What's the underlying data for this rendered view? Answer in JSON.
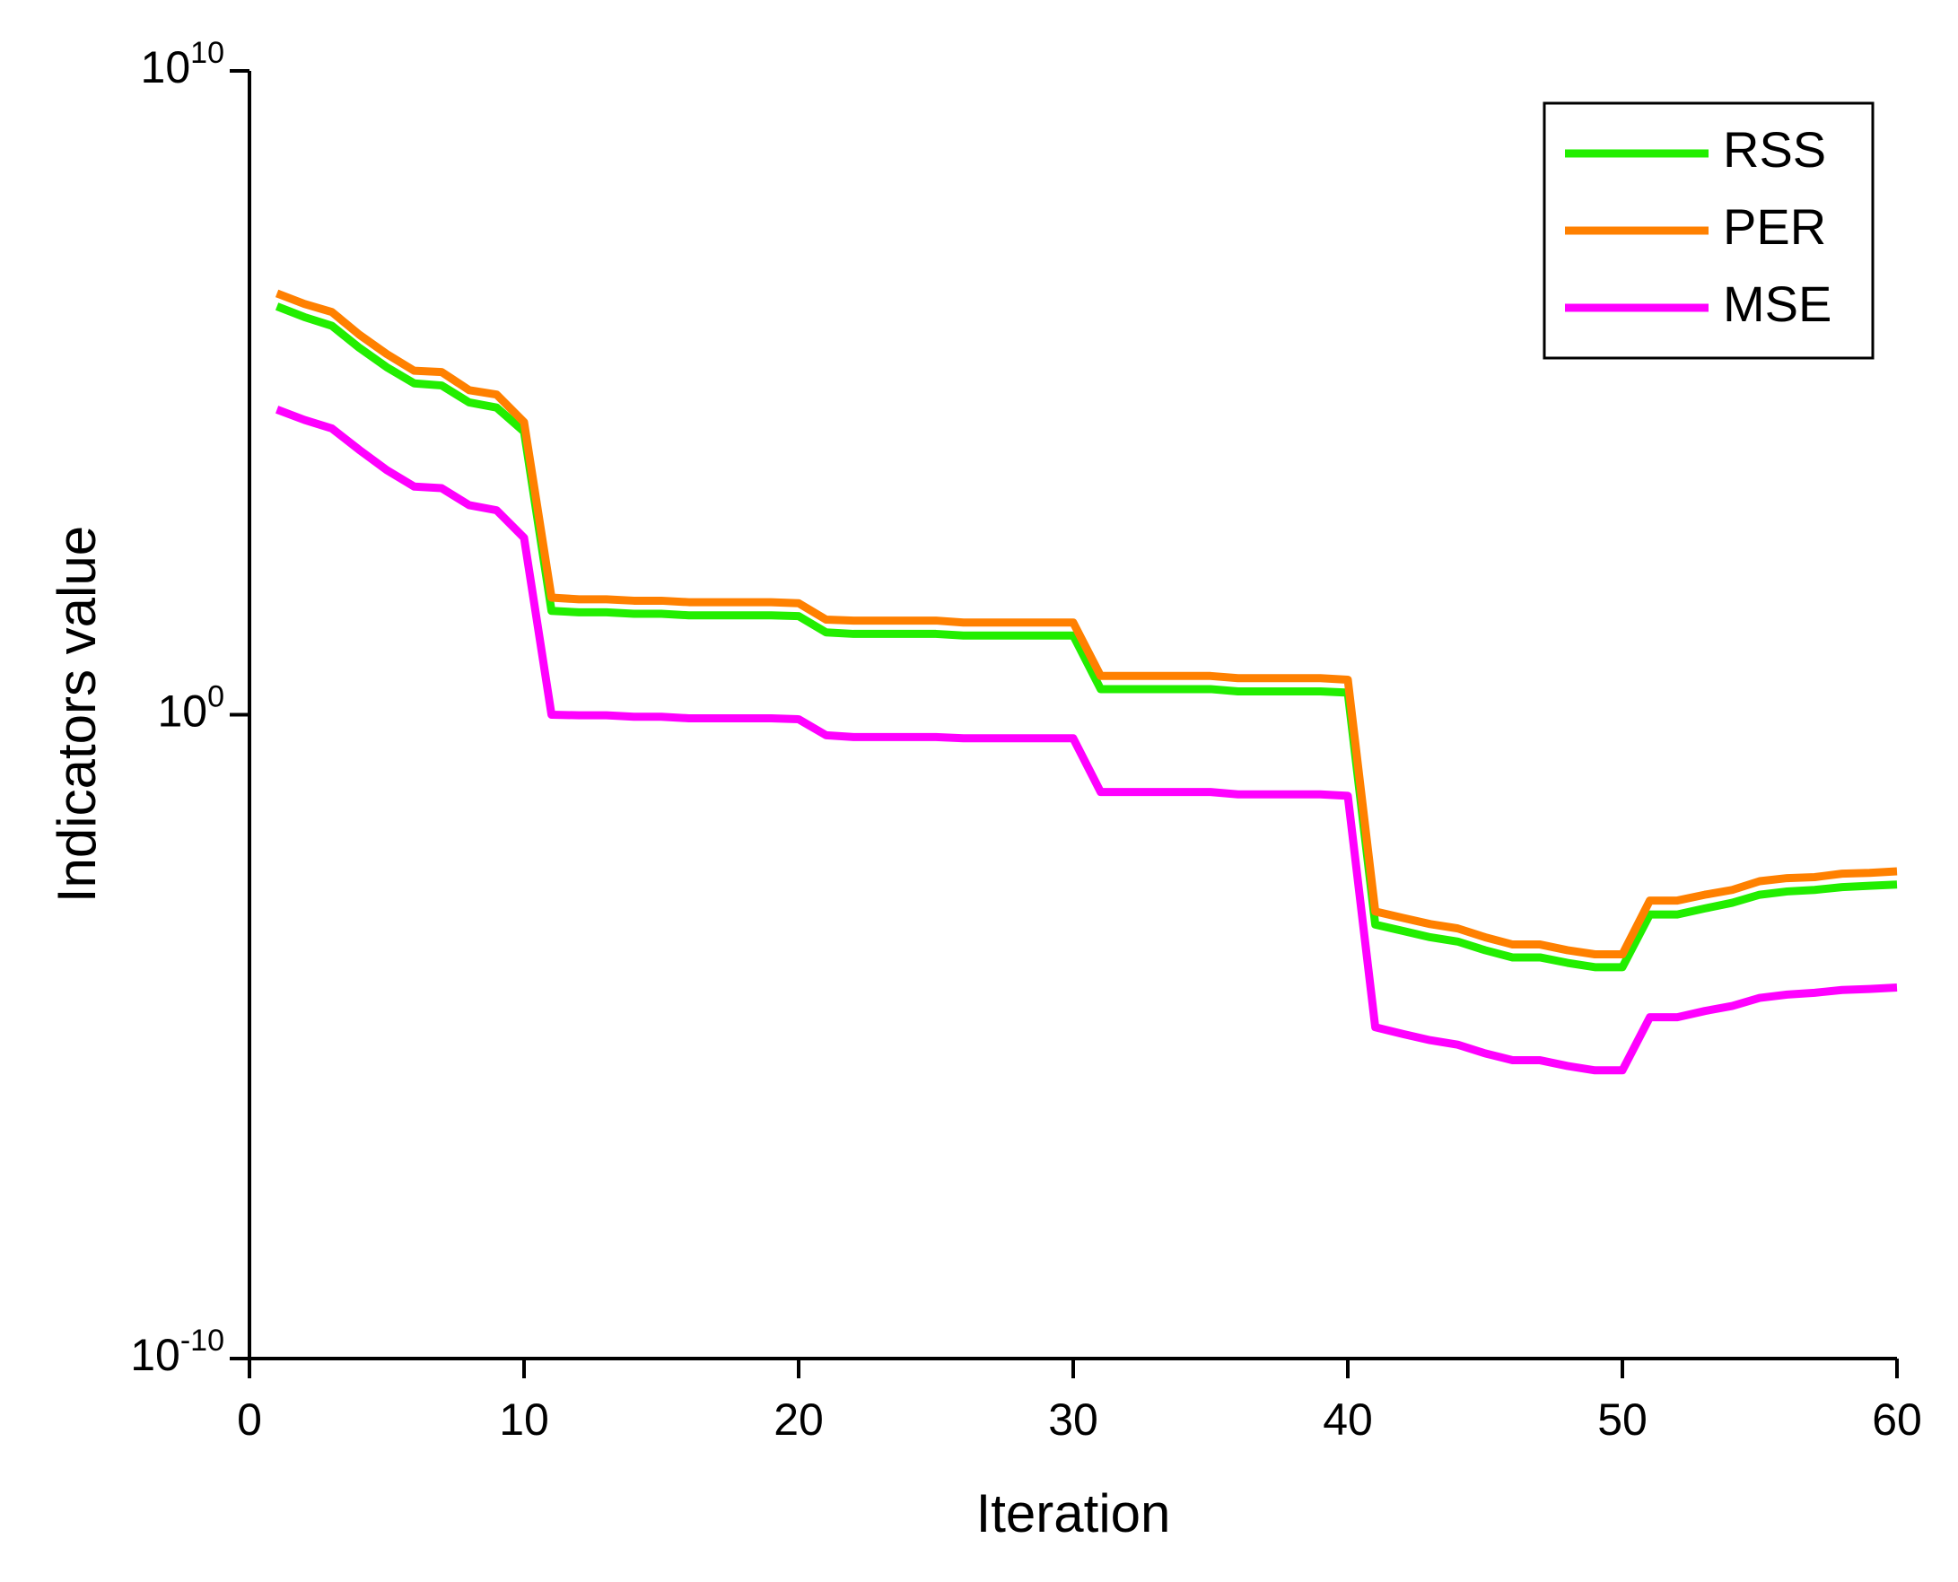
{
  "chart_data": {
    "type": "line",
    "x_label": "Iteration",
    "y_label": "Indicators value",
    "x": [
      1,
      2,
      3,
      4,
      5,
      6,
      7,
      8,
      9,
      10,
      11,
      12,
      13,
      14,
      15,
      16,
      17,
      18,
      19,
      20,
      21,
      22,
      23,
      24,
      25,
      26,
      27,
      28,
      29,
      30,
      31,
      32,
      33,
      34,
      35,
      36,
      37,
      38,
      39,
      40,
      41,
      42,
      43,
      44,
      45,
      46,
      47,
      48,
      49,
      50,
      51,
      52,
      53,
      54,
      55,
      56,
      57,
      58,
      59,
      60
    ],
    "series": [
      {
        "name": "RSS",
        "color": "#22ee00",
        "values": [
          2200000.0,
          1500000.0,
          1100000.0,
          500000.0,
          250000.0,
          140000.0,
          130000.0,
          71000.0,
          59000.0,
          25000.0,
          41,
          39,
          39,
          37,
          37,
          35,
          35,
          35,
          35,
          34,
          19,
          18,
          18,
          18,
          18,
          17,
          17,
          17,
          17,
          17,
          2.5,
          2.5,
          2.5,
          2.5,
          2.5,
          2.3,
          2.3,
          2.3,
          2.3,
          2.2,
          0.00055,
          0.00044,
          0.00035,
          0.0003,
          0.00022,
          0.00017,
          0.00017,
          0.00014,
          0.00012,
          0.00012,
          0.00079,
          0.00079,
          0.00098,
          0.0012,
          0.0016,
          0.0018,
          0.0019,
          0.0021,
          0.0022,
          0.0023
        ]
      },
      {
        "name": "PER",
        "color": "#ff8000",
        "values": [
          3500000.0,
          2400000.0,
          1800000.0,
          800000.0,
          400000.0,
          220000.0,
          210000.0,
          110000.0,
          94000.0,
          35000.0,
          66,
          62,
          62,
          59,
          59,
          56,
          56,
          56,
          56,
          54,
          30,
          29,
          29,
          29,
          29,
          27,
          27,
          27,
          27,
          27,
          4.0,
          4.0,
          4.0,
          4.0,
          4.0,
          3.7,
          3.7,
          3.7,
          3.7,
          3.5,
          0.00088,
          0.0007,
          0.00056,
          0.00048,
          0.00035,
          0.00027,
          0.00027,
          0.00022,
          0.00019,
          0.00019,
          0.0013,
          0.0013,
          0.0016,
          0.0019,
          0.0026,
          0.0029,
          0.003,
          0.0034,
          0.0035,
          0.0037
        ]
      },
      {
        "name": "MSE",
        "color": "#ff00ff",
        "values": [
          55000.0,
          38000.0,
          28000.0,
          13000.0,
          6300.0,
          3500.0,
          3300.0,
          1800.0,
          1500.0,
          560,
          1.0,
          0.98,
          0.98,
          0.93,
          0.93,
          0.88,
          0.88,
          0.88,
          0.88,
          0.85,
          0.48,
          0.45,
          0.45,
          0.45,
          0.45,
          0.43,
          0.43,
          0.43,
          0.43,
          0.43,
          0.063,
          0.063,
          0.063,
          0.063,
          0.063,
          0.058,
          0.058,
          0.058,
          0.058,
          0.055,
          1.4e-05,
          1.1e-05,
          8.8e-06,
          7.5e-06,
          5.5e-06,
          4.3e-06,
          4.3e-06,
          3.5e-06,
          3e-06,
          3e-06,
          2e-05,
          2e-05,
          2.5e-05,
          3e-05,
          4e-05,
          4.5e-05,
          4.8e-05,
          5.3e-05,
          5.5e-05,
          5.8e-05
        ]
      }
    ],
    "xlim": [
      0,
      60
    ],
    "xticks": [
      0,
      10,
      20,
      30,
      40,
      50,
      60
    ],
    "ylim": [
      1e-10,
      10000000000.0
    ],
    "yticks": [
      {
        "value": 1e-10,
        "label": "10^-10"
      },
      {
        "value": 1,
        "label": "10^0"
      },
      {
        "value": 10000000000.0,
        "label": "10^10"
      }
    ],
    "yscale": "log",
    "grid": false,
    "legend": "upper right"
  }
}
